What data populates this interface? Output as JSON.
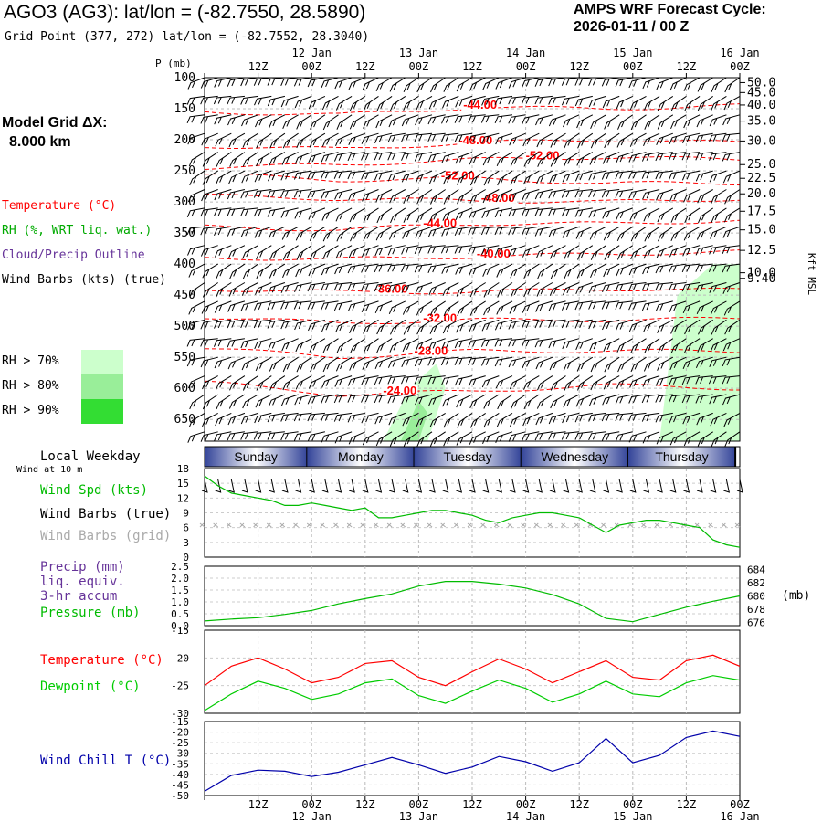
{
  "header": {
    "title": "AGO3 (AG3):  lat/lon = (-82.7550, 28.5890)",
    "subtitle": "Grid Point (377, 272) lat/lon = (-82.7552, 28.3040)",
    "cycle_label": "AMPS WRF Forecast Cycle:",
    "cycle_value": "2026-01-11 / 00  Z"
  },
  "model_grid": {
    "label": "Model Grid ΔX:",
    "value": "8.000 km"
  },
  "upper_legend": {
    "temperature": "Temperature (°C)",
    "rh": "RH (%, WRT liq. wat.)",
    "cloud": "Cloud/Precip Outline",
    "wind": "Wind Barbs (kts) (true)",
    "rh_levels": [
      {
        "label": "RH > 70%",
        "color": "#ccffcc"
      },
      {
        "label": "RH > 80%",
        "color": "#99ee99"
      },
      {
        "label": "RH > 90%",
        "color": "#33dd33"
      }
    ]
  },
  "time_axis": {
    "top_hour_labels": [
      "12Z",
      "00Z",
      "12Z",
      "00Z",
      "12Z",
      "00Z",
      "12Z",
      "00Z",
      "12Z",
      "00Z"
    ],
    "date_labels": [
      "12 Jan",
      "13 Jan",
      "14 Jan",
      "15 Jan",
      "16 Jan"
    ],
    "bottom_hour_labels": [
      "12Z",
      "00Z",
      "12Z",
      "00Z",
      "12Z",
      "00Z",
      "12Z",
      "00Z",
      "12Z",
      "00Z"
    ],
    "forecast_hours_range": [
      0,
      120
    ]
  },
  "weekday_bar": {
    "label": "Local Weekday",
    "days": [
      "Sunday",
      "Monday",
      "Tuesday",
      "Wednesday",
      "Thursday"
    ]
  },
  "colors": {
    "temperature": "#ff0000",
    "rh_text": "#00aa00",
    "cloud_text": "#663399",
    "wind_speed": "#00bb00",
    "dewpoint": "#00cc00",
    "pressure": "#00bb00",
    "wind_chill": "#0000aa",
    "precip_text": "#663399",
    "grid_barb": "#aaaaaa"
  },
  "chart_data": [
    {
      "type": "contour",
      "name": "vertical-section",
      "ylabel_left": "P (mb)",
      "ylabel_right": "Kft MSL",
      "pressure_ticks": [
        100,
        150,
        200,
        250,
        300,
        350,
        400,
        450,
        500,
        550,
        600,
        650
      ],
      "ylim_mb": [
        100,
        685
      ],
      "height_ticks_kft": [
        {
          "label": "50.0",
          "p": 108
        },
        {
          "label": "45.0",
          "p": 124
        },
        {
          "label": "40.0",
          "p": 144
        },
        {
          "label": "35.0",
          "p": 170
        },
        {
          "label": "30.0",
          "p": 202
        },
        {
          "label": "25.0",
          "p": 240
        },
        {
          "label": "22.5",
          "p": 262
        },
        {
          "label": "20.0",
          "p": 287
        },
        {
          "label": "17.5",
          "p": 315
        },
        {
          "label": "15.0",
          "p": 345
        },
        {
          "label": "12.5",
          "p": 378
        },
        {
          "label": "10.0",
          "p": 414
        },
        {
          "label": "9.40",
          "p": 423
        }
      ],
      "isotherms": [
        {
          "label": "-44.00",
          "fh": [
            0,
            30,
            60,
            90,
            120
          ],
          "p": [
            155,
            160,
            148,
            150,
            145
          ],
          "label_fh": 58
        },
        {
          "label": "-48.00",
          "fh": [
            0,
            30,
            60,
            90,
            120
          ],
          "p": [
            210,
            215,
            205,
            200,
            205
          ],
          "label_fh": 57
        },
        {
          "label": "-52.00",
          "fh": [
            0,
            30,
            60,
            90,
            120
          ],
          "p": [
            245,
            240,
            232,
            228,
            232
          ],
          "label_fh": 72
        },
        {
          "label": "-52.00",
          "fh": [
            0,
            30,
            60,
            90,
            120
          ],
          "p": [
            255,
            265,
            262,
            270,
            270
          ],
          "label_fh": 53
        },
        {
          "label": "-48.00",
          "fh": [
            0,
            30,
            60,
            90,
            120
          ],
          "p": [
            290,
            295,
            298,
            300,
            295
          ],
          "label_fh": 62
        },
        {
          "label": "-44.00",
          "fh": [
            0,
            30,
            60,
            90,
            120
          ],
          "p": [
            340,
            345,
            335,
            335,
            330
          ],
          "label_fh": 49
        },
        {
          "label": "-40.00",
          "fh": [
            0,
            30,
            60,
            90,
            120
          ],
          "p": [
            390,
            392,
            388,
            384,
            380
          ],
          "label_fh": 61
        },
        {
          "label": "-36.00",
          "fh": [
            0,
            30,
            60,
            90,
            120
          ],
          "p": [
            440,
            445,
            445,
            440,
            442
          ],
          "label_fh": 38
        },
        {
          "label": "-32.00",
          "fh": [
            0,
            30,
            60,
            90,
            120
          ],
          "p": [
            485,
            495,
            490,
            490,
            488
          ],
          "label_fh": 49
        },
        {
          "label": "-28.00",
          "fh": [
            0,
            30,
            60,
            90,
            120
          ],
          "p": [
            535,
            550,
            540,
            540,
            540
          ],
          "label_fh": 47
        },
        {
          "label": "-24.00",
          "fh": [
            0,
            30,
            60,
            90,
            120
          ],
          "p": [
            590,
            610,
            605,
            595,
            600
          ],
          "label_fh": 40
        }
      ],
      "rh_regions": [
        {
          "level": 70,
          "fh": [
            40,
            46,
            52,
            54,
            50,
            44,
            36,
            30,
            40
          ],
          "p": [
            685,
            600,
            560,
            600,
            685,
            685,
            685,
            685,
            685
          ]
        },
        {
          "level": 70,
          "fh": [
            102,
            106,
            114,
            120,
            120,
            102
          ],
          "p": [
            685,
            450,
            400,
            400,
            685,
            685
          ]
        },
        {
          "level": 80,
          "fh": [
            44,
            48,
            50,
            48,
            44
          ],
          "p": [
            685,
            620,
            640,
            685,
            685
          ]
        }
      ],
      "wind_barb_levels_mb": [
        100,
        130,
        160,
        190,
        220,
        250,
        280,
        310,
        340,
        370,
        400,
        430,
        460,
        490,
        520,
        550,
        580,
        610,
        640,
        670
      ],
      "wind_barb_step_hours": 3
    },
    {
      "type": "line",
      "name": "wind-speed",
      "ylabel": "Wind Spd (kts)",
      "title": "Wind at 10 m",
      "ylim": [
        0,
        18
      ],
      "yticks": [
        0,
        3,
        6,
        9,
        12,
        15,
        18
      ],
      "series": [
        {
          "name": "Wind Spd (kts)",
          "x": [
            0,
            3,
            6,
            9,
            12,
            15,
            18,
            21,
            24,
            27,
            30,
            33,
            36,
            39,
            42,
            45,
            48,
            51,
            54,
            57,
            60,
            63,
            66,
            69,
            72,
            75,
            78,
            81,
            84,
            87,
            90,
            93,
            96,
            99,
            102,
            105,
            108,
            111,
            114,
            117,
            120
          ],
          "values": [
            16.5,
            14.5,
            13.0,
            12.5,
            12.0,
            11.5,
            10.5,
            10.5,
            11.0,
            10.5,
            10.0,
            9.5,
            10.0,
            8.0,
            8.0,
            8.5,
            9.0,
            9.5,
            9.5,
            9.0,
            8.5,
            7.5,
            7.0,
            8.0,
            8.5,
            9.0,
            9.0,
            8.5,
            8.0,
            6.5,
            5.0,
            6.5,
            7.0,
            7.5,
            7.5,
            7.0,
            6.5,
            6.0,
            3.5,
            2.5,
            2.0
          ]
        }
      ],
      "wind_barbs_label": "Wind Barbs (true)",
      "wind_barbs_grid_label": "Wind Barbs (grid)"
    },
    {
      "type": "line",
      "name": "precip-pressure",
      "ylabel_left_lines": [
        "Precip (mm)",
        "liq. equiv.",
        "3-hr accum"
      ],
      "ylabel": "Pressure (mb)",
      "ylabel_right": "(mb)",
      "ylim_left": [
        0,
        2.5
      ],
      "yticks_left": [
        "0.0",
        "0.5",
        "1.0",
        "1.5",
        "2.0",
        "2.5"
      ],
      "ylim_right": [
        675.5,
        684.5
      ],
      "yticks_right": [
        676,
        678,
        680,
        682,
        684
      ],
      "series": [
        {
          "name": "Pressure (mb)",
          "x": [
            0,
            6,
            12,
            18,
            24,
            30,
            36,
            42,
            48,
            54,
            60,
            66,
            72,
            78,
            84,
            90,
            96,
            102,
            108,
            114,
            120
          ],
          "values": [
            676.2,
            676.5,
            676.7,
            677.2,
            677.8,
            678.8,
            679.6,
            680.3,
            681.5,
            682.2,
            682.2,
            681.8,
            681.2,
            680.2,
            678.8,
            676.6,
            676.1,
            677.2,
            678.3,
            679.2,
            680.0
          ]
        }
      ]
    },
    {
      "type": "line",
      "name": "temperature-dewpoint",
      "ylim": [
        -30,
        -15
      ],
      "yticks": [
        -30,
        -25,
        -20,
        -15
      ],
      "series": [
        {
          "name": "Temperature (°C)",
          "x": [
            0,
            6,
            12,
            18,
            24,
            30,
            36,
            42,
            48,
            54,
            60,
            66,
            72,
            78,
            84,
            90,
            96,
            102,
            108,
            114,
            120
          ],
          "values": [
            -25.0,
            -21.5,
            -20.0,
            -22.0,
            -24.5,
            -23.5,
            -21.0,
            -20.5,
            -23.5,
            -25.0,
            -22.5,
            -20.2,
            -22.0,
            -24.5,
            -22.5,
            -20.5,
            -23.5,
            -24.0,
            -20.5,
            -19.5,
            -21.5
          ]
        },
        {
          "name": "Dewpoint (°C)",
          "x": [
            0,
            6,
            12,
            18,
            24,
            30,
            36,
            42,
            48,
            54,
            60,
            66,
            72,
            78,
            84,
            90,
            96,
            102,
            108,
            114,
            120
          ],
          "values": [
            -29.5,
            -26.5,
            -24.2,
            -25.5,
            -27.5,
            -26.5,
            -24.5,
            -23.8,
            -26.8,
            -28.2,
            -26.0,
            -24.0,
            -25.5,
            -28.0,
            -26.5,
            -24.2,
            -26.5,
            -27.0,
            -24.5,
            -23.2,
            -24.0
          ]
        }
      ]
    },
    {
      "type": "line",
      "name": "wind-chill",
      "ylim": [
        -50,
        -15
      ],
      "yticks": [
        -50,
        -45,
        -40,
        -35,
        -30,
        -25,
        -20,
        -15
      ],
      "series": [
        {
          "name": "Wind Chill T (°C)",
          "x": [
            0,
            6,
            12,
            18,
            24,
            30,
            36,
            42,
            48,
            54,
            60,
            66,
            72,
            78,
            84,
            90,
            96,
            102,
            108,
            114,
            120
          ],
          "values": [
            -48.0,
            -40.5,
            -38.0,
            -38.5,
            -41.0,
            -39.0,
            -35.5,
            -32.0,
            -35.5,
            -39.5,
            -36.5,
            -31.5,
            -34.0,
            -38.5,
            -34.5,
            -23.0,
            -34.5,
            -31.0,
            -22.5,
            -19.5,
            -22.0
          ]
        }
      ]
    }
  ]
}
